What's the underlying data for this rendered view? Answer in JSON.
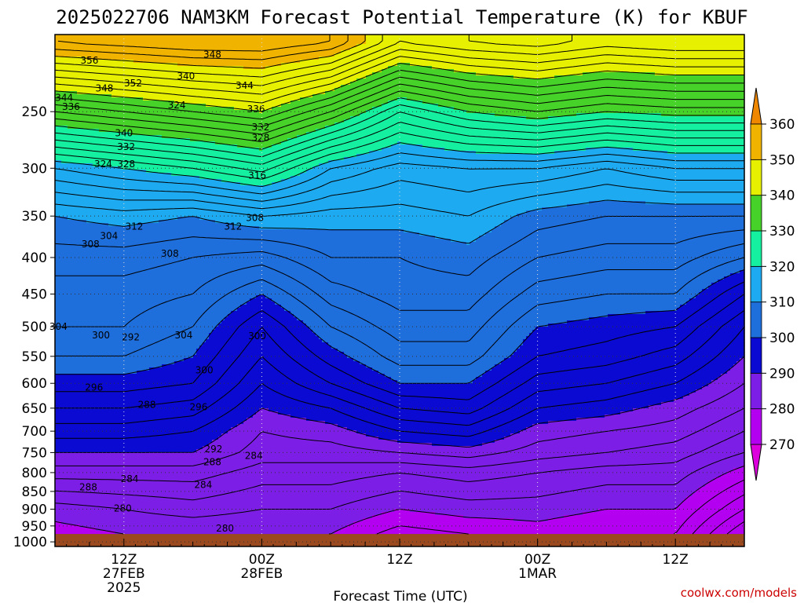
{
  "chart_data": {
    "type": "heatmap",
    "title": "2025022706 NAM3KM Forecast Potential Temperature (K) for KBUF",
    "xlabel": "Forecast Time (UTC)",
    "ylabel": "",
    "watermark": "coolwx.com/models",
    "x_ticks": [
      {
        "hour": 6,
        "lines": [
          "12Z",
          "27FEB",
          "2025"
        ]
      },
      {
        "hour": 18,
        "lines": [
          "00Z",
          "28FEB"
        ]
      },
      {
        "hour": 30,
        "lines": [
          "12Z"
        ]
      },
      {
        "hour": 42,
        "lines": [
          "00Z",
          "1MAR"
        ]
      },
      {
        "hour": 54,
        "lines": [
          "12Z"
        ]
      }
    ],
    "xlim": [
      0,
      60
    ],
    "y_axis": {
      "type": "log-pressure",
      "unit": "hPa",
      "ticks": [
        250,
        300,
        350,
        400,
        450,
        500,
        550,
        600,
        650,
        700,
        750,
        800,
        850,
        900,
        950,
        1000
      ],
      "range": [
        1015,
        195
      ]
    },
    "colorbar": {
      "labels": [
        270,
        280,
        290,
        300,
        310,
        320,
        330,
        340,
        350,
        360
      ],
      "levels": [
        260,
        270,
        280,
        290,
        300,
        310,
        320,
        330,
        340,
        350,
        360,
        370
      ],
      "colors": [
        "#dc00dc",
        "#b400f0",
        "#7d1ee6",
        "#0a0ad2",
        "#1e6edc",
        "#1eaaf0",
        "#14f0a0",
        "#46d228",
        "#e6f000",
        "#f0b400",
        "#f08700"
      ]
    },
    "surface_color": "#9a4a1e",
    "surface_pressure": 975,
    "profile_hours": [
      0,
      6,
      12,
      18,
      24,
      30,
      36,
      42,
      48,
      54,
      60
    ],
    "profiles": [
      {
        "p": [
          975,
          900,
          800,
          750,
          700,
          650,
          600,
          550,
          500,
          450,
          400,
          350,
          300,
          250,
          200
        ],
        "theta": [
          279,
          281,
          287,
          290,
          293,
          296,
          299,
          302,
          304,
          305,
          307,
          310,
          318,
          334,
          354
        ]
      },
      {
        "p": [
          975,
          900,
          800,
          750,
          700,
          650,
          600,
          550,
          500,
          450,
          400,
          350,
          300,
          250,
          200
        ],
        "theta": [
          280,
          282,
          287,
          290,
          293,
          296,
          299,
          302,
          304,
          305,
          307,
          311,
          320,
          336,
          355
        ]
      },
      {
        "p": [
          975,
          900,
          800,
          750,
          700,
          650,
          600,
          550,
          500,
          450,
          400,
          350,
          300,
          250,
          200
        ],
        "theta": [
          280,
          283,
          287,
          290,
          292,
          295,
          298,
          300,
          302,
          304,
          306,
          310,
          322,
          338,
          356
        ]
      },
      {
        "p": [
          975,
          900,
          800,
          750,
          700,
          650,
          600,
          550,
          500,
          450,
          400,
          350,
          300,
          250,
          200
        ],
        "theta": [
          280,
          282,
          285,
          287,
          288,
          290,
          292,
          294,
          296,
          300,
          305,
          312,
          325,
          340,
          356
        ]
      },
      {
        "p": [
          975,
          900,
          800,
          750,
          700,
          650,
          600,
          550,
          500,
          450,
          400,
          350,
          300,
          250,
          200
        ],
        "theta": [
          280,
          282,
          285,
          287,
          289,
          292,
          296,
          299,
          302,
          305,
          308,
          311,
          318,
          334,
          354
        ]
      },
      {
        "p": [
          975,
          900,
          800,
          750,
          700,
          650,
          600,
          550,
          500,
          450,
          400,
          350,
          300,
          250,
          200
        ],
        "theta": [
          277,
          280,
          284,
          288,
          292,
          296,
          300,
          303,
          305,
          307,
          308,
          311,
          315,
          326,
          346
        ]
      },
      {
        "p": [
          975,
          900,
          800,
          750,
          700,
          650,
          600,
          550,
          500,
          450,
          400,
          350,
          300,
          250,
          200
        ],
        "theta": [
          278,
          281,
          285,
          289,
          293,
          297,
          300,
          303,
          305,
          307,
          309,
          312,
          316,
          330,
          348
        ]
      },
      {
        "p": [
          975,
          900,
          800,
          750,
          700,
          650,
          600,
          550,
          500,
          450,
          400,
          350,
          300,
          250,
          200
        ],
        "theta": [
          279,
          281,
          284,
          287,
          289,
          292,
          295,
          298,
          300,
          303,
          306,
          309,
          316,
          332,
          349
        ]
      },
      {
        "p": [
          975,
          900,
          800,
          750,
          700,
          650,
          600,
          550,
          500,
          450,
          400,
          350,
          300,
          250,
          200
        ],
        "theta": [
          278,
          280,
          283,
          286,
          288,
          291,
          294,
          297,
          299,
          302,
          305,
          308,
          314,
          330,
          347
        ]
      },
      {
        "p": [
          975,
          900,
          800,
          750,
          700,
          650,
          600,
          550,
          500,
          450,
          400,
          350,
          300,
          250,
          200
        ],
        "theta": [
          278,
          280,
          283,
          285,
          287,
          289,
          292,
          295,
          298,
          302,
          305,
          308,
          316,
          331,
          348
        ]
      },
      {
        "p": [
          975,
          900,
          800,
          750,
          700,
          650,
          600,
          550,
          500,
          450,
          400,
          350,
          300,
          250,
          200
        ],
        "theta": [
          270,
          274,
          279,
          282,
          284,
          286,
          288,
          290,
          292,
          296,
          302,
          308,
          316,
          331,
          348
        ]
      }
    ],
    "contour_interval": 2,
    "contour_labels": [
      {
        "hour": 3.0,
        "p": 212,
        "text": "356"
      },
      {
        "hour": 0.8,
        "p": 239,
        "text": "344"
      },
      {
        "hour": 1.4,
        "p": 246,
        "text": "336"
      },
      {
        "hour": 4.3,
        "p": 232,
        "text": "348"
      },
      {
        "hour": 6.8,
        "p": 228,
        "text": "352"
      },
      {
        "hour": 6.0,
        "p": 268,
        "text": "340"
      },
      {
        "hour": 6.2,
        "p": 280,
        "text": "332"
      },
      {
        "hour": 4.2,
        "p": 296,
        "text": "324"
      },
      {
        "hour": 6.2,
        "p": 296,
        "text": "328"
      },
      {
        "hour": 10.6,
        "p": 245,
        "text": "324"
      },
      {
        "hour": 11.4,
        "p": 223,
        "text": "340"
      },
      {
        "hour": 13.7,
        "p": 208,
        "text": "348"
      },
      {
        "hour": 16.5,
        "p": 230,
        "text": "344"
      },
      {
        "hour": 17.5,
        "p": 248,
        "text": "336"
      },
      {
        "hour": 17.9,
        "p": 263,
        "text": "332"
      },
      {
        "hour": 17.9,
        "p": 272,
        "text": "328"
      },
      {
        "hour": 17.6,
        "p": 307,
        "text": "316"
      },
      {
        "hour": 3.1,
        "p": 383,
        "text": "308"
      },
      {
        "hour": 4.7,
        "p": 373,
        "text": "304"
      },
      {
        "hour": 6.9,
        "p": 362,
        "text": "312"
      },
      {
        "hour": 10.0,
        "p": 395,
        "text": "308"
      },
      {
        "hour": 15.5,
        "p": 362,
        "text": "312"
      },
      {
        "hour": 17.4,
        "p": 352,
        "text": "308"
      },
      {
        "hour": 0.3,
        "p": 500,
        "text": "304"
      },
      {
        "hour": 4.0,
        "p": 514,
        "text": "300"
      },
      {
        "hour": 6.6,
        "p": 517,
        "text": "292"
      },
      {
        "hour": 11.2,
        "p": 514,
        "text": "304"
      },
      {
        "hour": 13.0,
        "p": 575,
        "text": "300"
      },
      {
        "hour": 17.6,
        "p": 515,
        "text": "300"
      },
      {
        "hour": 3.4,
        "p": 608,
        "text": "296"
      },
      {
        "hour": 8.0,
        "p": 643,
        "text": "288"
      },
      {
        "hour": 12.5,
        "p": 648,
        "text": "296"
      },
      {
        "hour": 13.8,
        "p": 742,
        "text": "292"
      },
      {
        "hour": 13.7,
        "p": 773,
        "text": "288"
      },
      {
        "hour": 17.3,
        "p": 758,
        "text": "284"
      },
      {
        "hour": 2.9,
        "p": 838,
        "text": "288"
      },
      {
        "hour": 6.5,
        "p": 817,
        "text": "284"
      },
      {
        "hour": 12.9,
        "p": 832,
        "text": "284"
      },
      {
        "hour": 5.9,
        "p": 898,
        "text": "280"
      },
      {
        "hour": 14.8,
        "p": 958,
        "text": "280"
      }
    ]
  }
}
